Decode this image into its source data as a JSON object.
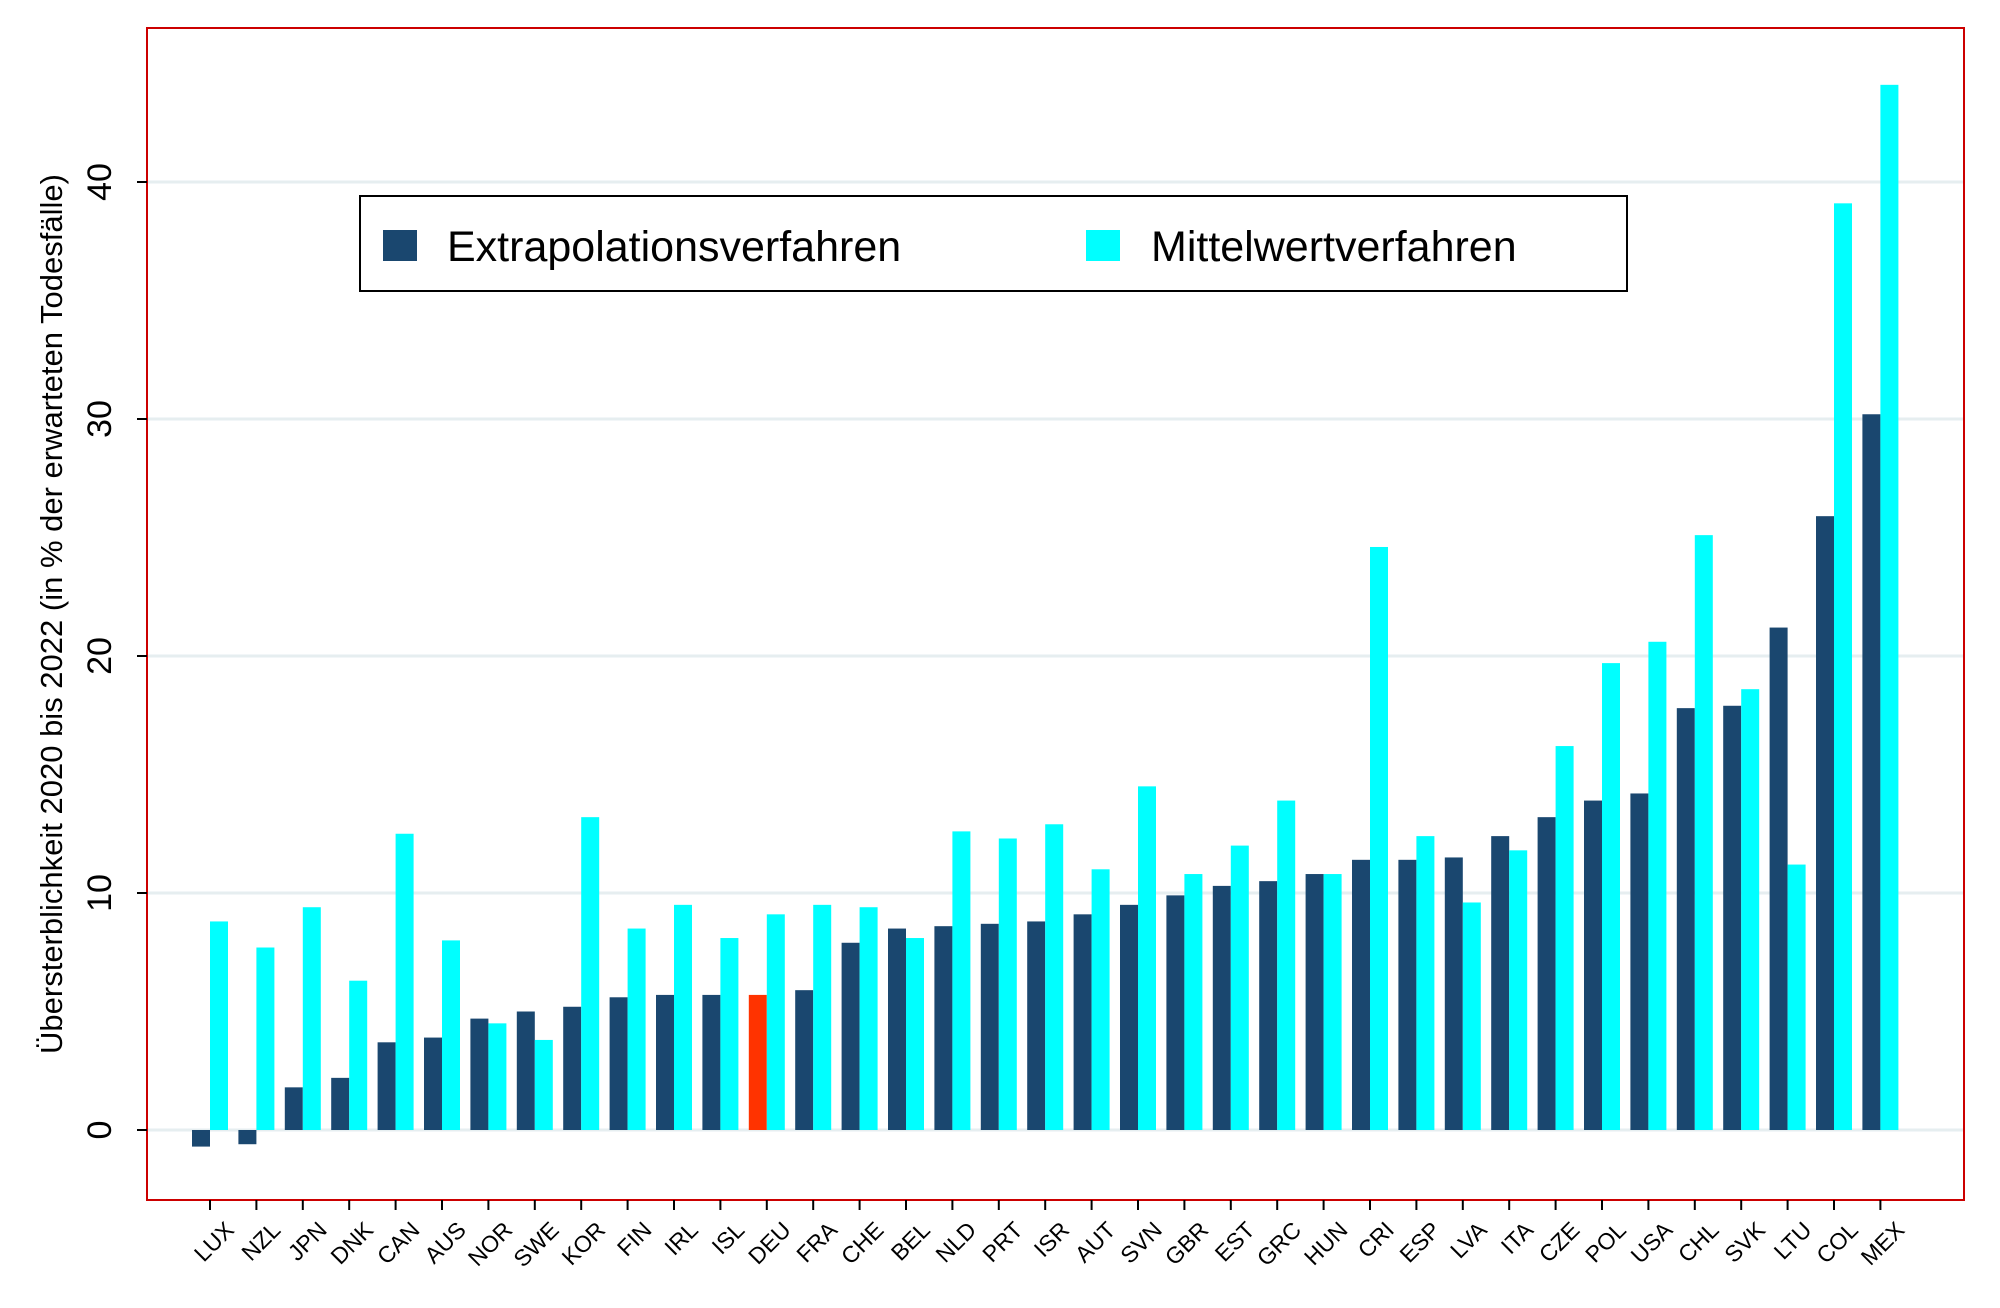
{
  "chart_data": {
    "type": "bar",
    "ylabel": "Übersterblichkeit 2020 bis 2022 (in % der erwarteten Todesfälle)",
    "xlabel": "",
    "ylim": [
      -3,
      47
    ],
    "yticks": [
      0,
      10,
      20,
      30,
      40
    ],
    "grid": "horizontal",
    "legend_position": "top",
    "categories": [
      "LUX",
      "NZL",
      "JPN",
      "DNK",
      "CAN",
      "AUS",
      "NOR",
      "SWE",
      "KOR",
      "FIN",
      "IRL",
      "ISL",
      "DEU",
      "FRA",
      "CHE",
      "BEL",
      "NLD",
      "PRT",
      "ISR",
      "AUT",
      "SVN",
      "GBR",
      "EST",
      "GRC",
      "HUN",
      "CRI",
      "ESP",
      "LVA",
      "ITA",
      "CZE",
      "POL",
      "USA",
      "CHL",
      "SVK",
      "LTU",
      "COL",
      "MEX"
    ],
    "highlight_category": "DEU",
    "highlight_color": "#ff3300",
    "series": [
      {
        "name": "Extrapolationsverfahren",
        "color": "#1a476f",
        "values": [
          -0.7,
          -0.6,
          1.8,
          2.2,
          3.7,
          3.9,
          4.7,
          5.0,
          5.2,
          5.6,
          5.7,
          5.7,
          5.7,
          5.9,
          7.9,
          8.5,
          8.6,
          8.7,
          8.8,
          9.1,
          9.5,
          9.9,
          10.3,
          10.5,
          10.8,
          11.4,
          11.4,
          11.5,
          12.4,
          13.2,
          13.9,
          14.2,
          17.8,
          17.9,
          21.2,
          25.9,
          30.2
        ]
      },
      {
        "name": "Mittelwertverfahren",
        "color": "#00ffff",
        "values": [
          8.8,
          7.7,
          9.4,
          6.3,
          12.5,
          8.0,
          4.5,
          3.8,
          13.2,
          8.5,
          9.5,
          8.1,
          9.1,
          9.5,
          9.4,
          8.1,
          12.6,
          12.3,
          12.9,
          11.0,
          14.5,
          10.8,
          12.0,
          13.9,
          10.8,
          24.6,
          12.4,
          9.6,
          11.8,
          16.2,
          19.7,
          20.6,
          25.1,
          18.6,
          11.2,
          39.1,
          44.1
        ]
      }
    ]
  }
}
